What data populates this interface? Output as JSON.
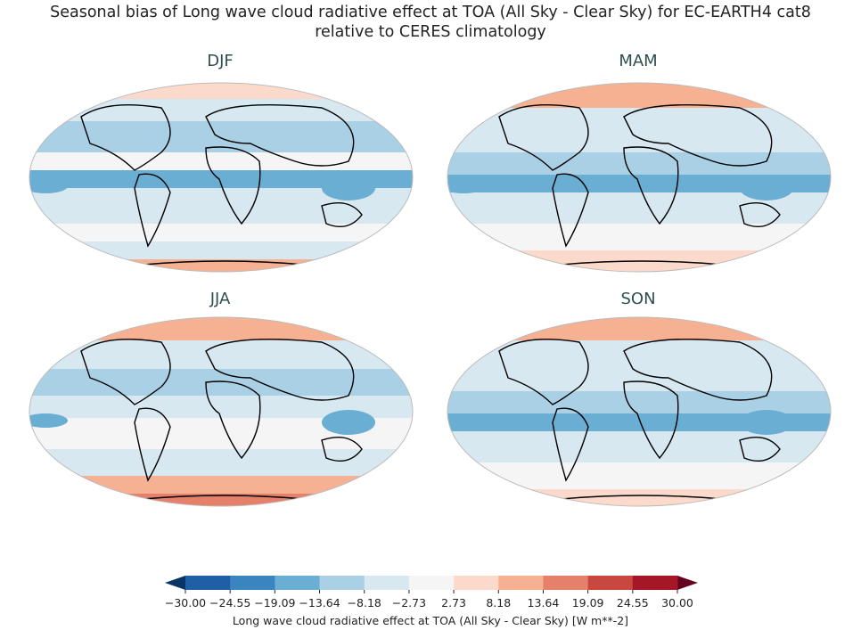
{
  "title_line1": "Seasonal bias of Long wave cloud radiative effect at TOA (All Sky - Clear Sky) for EC-EARTH4 cat8",
  "title_line2": "relative to CERES climatology",
  "panels": [
    {
      "label": "DJF"
    },
    {
      "label": "MAM"
    },
    {
      "label": "JJA"
    },
    {
      "label": "SON"
    }
  ],
  "colorbar": {
    "label": "Long wave cloud radiative effect at TOA (All Sky - Clear Sky) [W m**-2]",
    "ticks": [
      "−30.00",
      "−24.55",
      "−19.09",
      "−13.64",
      "−8.18",
      "−2.73",
      "2.73",
      "8.18",
      "13.64",
      "19.09",
      "24.55",
      "30.00"
    ],
    "extend": "both",
    "colors": [
      "#1f5fa6",
      "#3a84c0",
      "#6aaed3",
      "#a9d0e5",
      "#d7e8f1",
      "#f5f5f5",
      "#fcdacb",
      "#f6b193",
      "#e5816b",
      "#c8473f",
      "#a51727"
    ],
    "under_color": "#0a3466",
    "over_color": "#67001f"
  },
  "projection": "Robinson"
}
